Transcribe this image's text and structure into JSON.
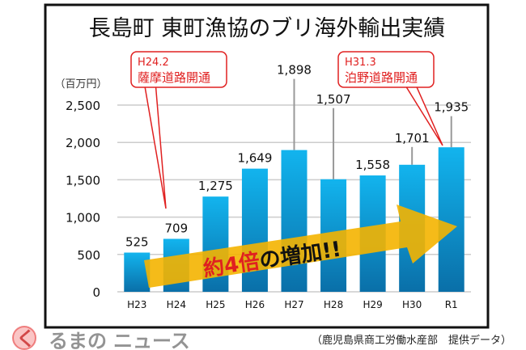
{
  "chart_data": {
    "type": "bar",
    "title": "長島町 東町漁協のブリ海外輸出実績",
    "ylabel": "（百万円）",
    "xlabel": "",
    "categories": [
      "H23",
      "H24",
      "H25",
      "H26",
      "H27",
      "H28",
      "H29",
      "H30",
      "R1"
    ],
    "values": [
      525,
      709,
      1275,
      1649,
      1898,
      1507,
      1558,
      1701,
      1935
    ],
    "value_labels": [
      "525",
      "709",
      "1,275",
      "1,649",
      "1,898",
      "1,507",
      "1,558",
      "1,701",
      "1,935"
    ],
    "ylim": [
      0,
      2500
    ],
    "yticks": [
      0,
      500,
      1000,
      1500,
      2000,
      2500
    ],
    "ytick_labels": [
      "0",
      "500",
      "1,000",
      "1,500",
      "2,000",
      "2,500"
    ],
    "grid": true,
    "annotations": [
      {
        "line1": "H24.2",
        "line2": "薩摩道路開通",
        "category": "H24"
      },
      {
        "line1": "H31.3",
        "line2": "泊野道路開通",
        "category": "R1"
      }
    ],
    "arrow_text_red": "約4倍",
    "arrow_text_black": "の増加!!",
    "colors": {
      "bar": "#1a9ad6",
      "arrow": "#f4b400",
      "callout": "#e02020"
    }
  },
  "source": "（鹿児島県商工労働水産部　提供データ）",
  "watermark": "くるまのニュース"
}
